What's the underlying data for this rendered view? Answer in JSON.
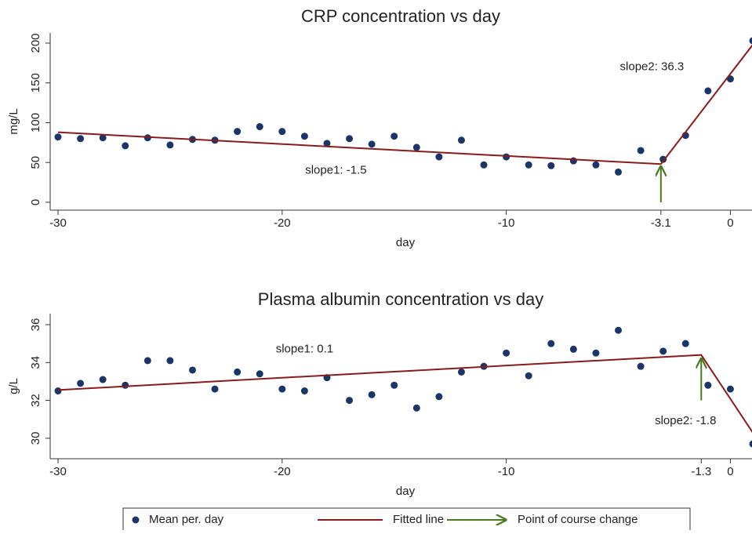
{
  "chart_data": [
    {
      "type": "scatter",
      "title": "CRP concentration vs day",
      "x_label": "day",
      "y_label": "mg/L",
      "xlim": [
        -30.35,
        1.0
      ],
      "ylim": [
        -9.9,
        212.8
      ],
      "xticks": [
        -30,
        -20,
        -10,
        -3.1,
        0
      ],
      "yticks": [
        0,
        50,
        100,
        150,
        200
      ],
      "series": [
        {
          "name": "Mean per. day",
          "kind": "scatter",
          "color": "#1a3668",
          "x": [
            -30,
            -29,
            -28,
            -27,
            -26,
            -25,
            -24,
            -23,
            -22,
            -21,
            -20,
            -19,
            -18,
            -17,
            -16,
            -15,
            -14,
            -13,
            -12,
            -11,
            -10,
            -9,
            -8,
            -7,
            -6,
            -5,
            -4,
            -3,
            -2,
            -1,
            0,
            1
          ],
          "values": [
            82,
            80,
            81,
            71,
            81,
            72,
            79,
            78,
            89,
            95,
            89,
            83,
            74,
            80,
            73,
            83,
            69,
            57,
            78,
            47,
            57,
            47,
            46,
            52,
            47,
            38,
            65,
            54,
            84,
            140,
            155,
            203
          ]
        },
        {
          "name": "Fitted line",
          "kind": "line",
          "color": "#8b1a1a",
          "x": [
            -30,
            -3.1,
            1
          ],
          "values": [
            88,
            48,
            198
          ]
        }
      ],
      "arrows": [
        {
          "name": "Point of course change",
          "color": "#4a7a1e",
          "x": -3.1,
          "y": [
            0,
            45
          ]
        }
      ],
      "annotations": [
        {
          "text": "slope1: -1.5"
        },
        {
          "text": "slope2: 36.3"
        }
      ]
    },
    {
      "type": "scatter",
      "title": "Plasma albumin concentration vs day",
      "x_label": "day",
      "y_label": "g/L",
      "xlim": [
        -30.35,
        1.0
      ],
      "ylim": [
        28.92,
        36.58
      ],
      "xticks": [
        -30,
        -20,
        -10,
        -1.3,
        0
      ],
      "yticks": [
        30,
        32,
        34,
        36
      ],
      "series": [
        {
          "kind": "scatter",
          "color": "#1a3668",
          "x": [
            -30,
            -29,
            -28,
            -27,
            -26,
            -25,
            -24,
            -23,
            -22,
            -21,
            -20,
            -19,
            -18,
            -17,
            -16,
            -15,
            -14,
            -13,
            -12,
            -11,
            -10,
            -9,
            -8,
            -7,
            -6,
            -5,
            -4,
            -3,
            -2,
            -1,
            0,
            1
          ],
          "values": [
            32.5,
            32.9,
            33.1,
            32.8,
            34.1,
            34.1,
            33.6,
            32.6,
            33.5,
            33.4,
            32.6,
            32.5,
            33.2,
            32.0,
            32.3,
            32.8,
            31.6,
            32.2,
            33.5,
            33.8,
            34.5,
            33.3,
            35.0,
            34.7,
            34.5,
            35.7,
            33.8,
            34.6,
            35.0,
            32.8,
            32.6,
            29.7
          ]
        },
        {
          "kind": "line",
          "color": "#8b1a1a",
          "x": [
            -30,
            -1.3,
            1
          ],
          "values": [
            32.55,
            34.4,
            30.3
          ]
        }
      ],
      "arrows": [
        {
          "color": "#4a7a1e",
          "x": -1.3,
          "y": [
            32,
            34.2
          ]
        }
      ],
      "annotations": [
        {
          "text": "slope1: 0.1"
        },
        {
          "text": "slope2: -1.8"
        }
      ]
    }
  ]
}
